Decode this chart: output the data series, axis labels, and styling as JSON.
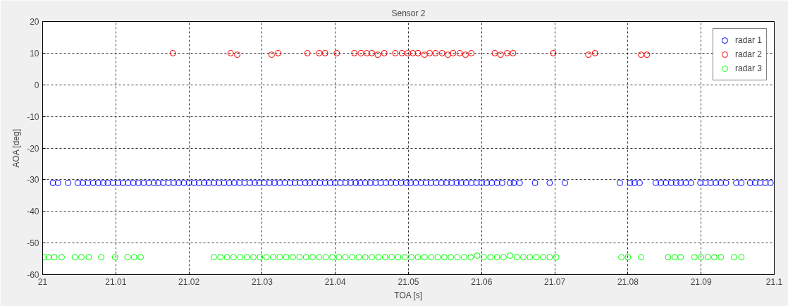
{
  "chart_data": {
    "type": "scatter",
    "title": "Sensor 2",
    "xlabel": "TOA [s]",
    "ylabel": "AOA [deg]",
    "xlim": [
      21,
      21.1
    ],
    "xticks": [
      21,
      21.01,
      21.02,
      21.03,
      21.04,
      21.05,
      21.06,
      21.07,
      21.08,
      21.09,
      21.1
    ],
    "ylim": [
      -60,
      20
    ],
    "yticks": [
      -60,
      -50,
      -40,
      -30,
      -20,
      -10,
      0,
      10,
      20
    ],
    "grid": true,
    "legend": "top right",
    "marker": "circle",
    "series": [
      {
        "name": "radar 1",
        "color": "#0000ff",
        "x": [
          21.0014,
          21.0021,
          21.0035,
          21.0048,
          21.0055,
          21.0062,
          21.0069,
          21.0076,
          21.0083,
          21.0089,
          21.0096,
          21.0103,
          21.011,
          21.0117,
          21.0124,
          21.0131,
          21.0138,
          21.0145,
          21.0152,
          21.0158,
          21.0165,
          21.0172,
          21.0179,
          21.0186,
          21.0193,
          21.02,
          21.0207,
          21.0214,
          21.0221,
          21.0227,
          21.0234,
          21.0241,
          21.0248,
          21.0255,
          21.0262,
          21.0269,
          21.0276,
          21.0283,
          21.029,
          21.0296,
          21.0303,
          21.031,
          21.0317,
          21.0324,
          21.0331,
          21.0338,
          21.0345,
          21.0352,
          21.0359,
          21.0365,
          21.0372,
          21.0379,
          21.0386,
          21.0393,
          21.04,
          21.0407,
          21.0414,
          21.0421,
          21.0428,
          21.0434,
          21.0441,
          21.0448,
          21.0455,
          21.0462,
          21.0469,
          21.0476,
          21.0483,
          21.049,
          21.0497,
          21.0503,
          21.051,
          21.0517,
          21.0524,
          21.0531,
          21.0538,
          21.0545,
          21.0552,
          21.0559,
          21.0566,
          21.0572,
          21.0579,
          21.0586,
          21.0593,
          21.06,
          21.0607,
          21.0614,
          21.0621,
          21.0628,
          21.0639,
          21.0644,
          21.0652,
          21.0673,
          21.0693,
          21.0714,
          21.0789,
          21.0803,
          21.0809,
          21.0816,
          21.0838,
          21.0845,
          21.0852,
          21.0859,
          21.0866,
          21.0872,
          21.0879,
          21.0886,
          21.0899,
          21.0906,
          21.0913,
          21.092,
          21.0927,
          21.0934,
          21.0948,
          21.0955,
          21.0967,
          21.0974,
          21.0981,
          21.0988,
          21.0995
        ],
        "values": [
          -31,
          -31,
          -31,
          -31,
          -31,
          -31,
          -31,
          -31,
          -31,
          -31,
          -31,
          -31,
          -31,
          -31,
          -31,
          -31,
          -31,
          -31,
          -31,
          -31,
          -31,
          -31,
          -31,
          -31,
          -31,
          -31,
          -31,
          -31,
          -31,
          -31,
          -31,
          -31,
          -31,
          -31,
          -31,
          -31,
          -31,
          -31,
          -31,
          -31,
          -31,
          -31,
          -31,
          -31,
          -31,
          -31,
          -31,
          -31,
          -31,
          -31,
          -31,
          -31,
          -31,
          -31,
          -31,
          -31,
          -31,
          -31,
          -31,
          -31,
          -31,
          -31,
          -31,
          -31,
          -31,
          -31,
          -31,
          -31,
          -31,
          -31,
          -31,
          -31,
          -31,
          -31,
          -31,
          -31,
          -31,
          -31,
          -31,
          -31,
          -31,
          -31,
          -31,
          -31,
          -31,
          -31,
          -31,
          -31,
          -31,
          -31,
          -31,
          -31,
          -31,
          -31,
          -31,
          -31,
          -31,
          -31,
          -31,
          -31,
          -31,
          -31,
          -31,
          -31,
          -31,
          -31,
          -31,
          -31,
          -31,
          -31,
          -31,
          -31,
          -31,
          -31,
          -31,
          -31,
          -31,
          -31,
          -31
        ]
      },
      {
        "name": "radar 2",
        "color": "#ff0000",
        "x": [
          21.0178,
          21.0257,
          21.0266,
          21.0313,
          21.0322,
          21.0362,
          21.0378,
          21.0386,
          21.0402,
          21.0426,
          21.0435,
          21.0443,
          21.045,
          21.0458,
          21.0467,
          21.0482,
          21.0491,
          21.0499,
          21.0506,
          21.0513,
          21.0522,
          21.0529,
          21.0537,
          21.0546,
          21.0554,
          21.0561,
          21.057,
          21.0578,
          21.0586,
          21.0618,
          21.0626,
          21.0635,
          21.0643,
          21.0698,
          21.0746,
          21.0755,
          21.0818,
          21.0826
        ],
        "values": [
          10,
          10,
          9.5,
          9.5,
          10,
          10,
          10,
          10,
          10,
          10,
          10,
          10,
          10,
          9.5,
          10,
          10,
          10,
          10,
          10,
          10,
          9.5,
          10,
          10,
          10,
          9.5,
          10,
          10,
          9.5,
          10,
          10,
          9.5,
          10,
          10,
          10,
          9.5,
          10,
          9.5,
          9.5
        ]
      },
      {
        "name": "radar 3",
        "color": "#00ff00",
        "x": [
          21.0002,
          21.0008,
          21.0016,
          21.0026,
          21.0044,
          21.0053,
          21.0063,
          21.008,
          21.0099,
          21.0116,
          21.0125,
          21.0134,
          21.0234,
          21.0243,
          21.0252,
          21.0261,
          21.027,
          21.0279,
          21.0288,
          21.0297,
          21.0306,
          21.0315,
          21.0324,
          21.0333,
          21.0342,
          21.0351,
          21.036,
          21.0369,
          21.0378,
          21.0387,
          21.0396,
          21.0405,
          21.0414,
          21.0423,
          21.0432,
          21.0441,
          21.045,
          21.0459,
          21.0468,
          21.0477,
          21.0486,
          21.0495,
          21.0504,
          21.0513,
          21.0522,
          21.0531,
          21.054,
          21.0549,
          21.0558,
          21.0567,
          21.0576,
          21.0585,
          21.0594,
          21.0603,
          21.0612,
          21.0621,
          21.063,
          21.0639,
          21.0648,
          21.0657,
          21.0666,
          21.0675,
          21.0684,
          21.0693,
          21.0702,
          21.0791,
          21.08,
          21.0818,
          21.0855,
          21.0864,
          21.0872,
          21.0891,
          21.09,
          21.0909,
          21.0918,
          21.0927,
          21.0945,
          21.0955
        ],
        "values": [
          -54.5,
          -54.5,
          -54.5,
          -54.5,
          -54.5,
          -54.5,
          -54.5,
          -54.5,
          -54.5,
          -54.5,
          -54.5,
          -54.5,
          -54.5,
          -54.5,
          -54.5,
          -54.5,
          -54.5,
          -54.5,
          -54.5,
          -54.5,
          -54.5,
          -54.5,
          -54.5,
          -54.5,
          -54.5,
          -54.5,
          -54.5,
          -54.5,
          -54.5,
          -54.5,
          -54.5,
          -54.5,
          -54.5,
          -54.5,
          -54.5,
          -54.5,
          -54.5,
          -54.5,
          -54.5,
          -54.5,
          -54.5,
          -54.5,
          -54.5,
          -54.5,
          -54.5,
          -54.5,
          -54.5,
          -54.5,
          -54.5,
          -54.5,
          -54.5,
          -54.5,
          -54,
          -54.5,
          -54.5,
          -54.5,
          -54.5,
          -54,
          -54.5,
          -54.5,
          -54.5,
          -54.5,
          -54.5,
          -54.5,
          -54.5,
          -54.5,
          -54.5,
          -54.5,
          -54.5,
          -54.5,
          -54.5,
          -54.5,
          -54.5,
          -54.5,
          -54.5,
          -54.5,
          -54.5,
          -54.5
        ]
      }
    ]
  }
}
